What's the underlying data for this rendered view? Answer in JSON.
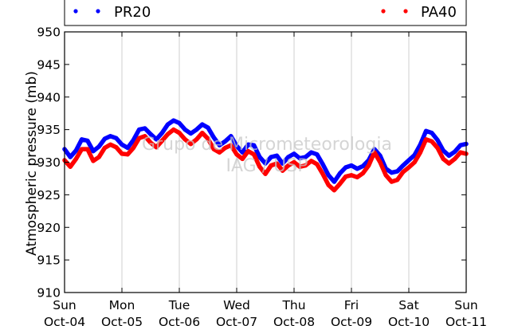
{
  "chart_data": {
    "type": "line",
    "ylabel": "Atmospheric pressure (mb)",
    "ylim": [
      910,
      950
    ],
    "yticks": [
      910,
      915,
      920,
      925,
      930,
      935,
      940,
      945,
      950
    ],
    "x_range_days": [
      0,
      7
    ],
    "xticks": [
      {
        "day": "Sun",
        "date": "Oct-04"
      },
      {
        "day": "Mon",
        "date": "Oct-05"
      },
      {
        "day": "Tue",
        "date": "Oct-06"
      },
      {
        "day": "Wed",
        "date": "Oct-07"
      },
      {
        "day": "Thu",
        "date": "Oct-08"
      },
      {
        "day": "Fri",
        "date": "Oct-09"
      },
      {
        "day": "Sat",
        "date": "Oct-10"
      },
      {
        "day": "Sun",
        "date": "Oct-11"
      }
    ],
    "grid": "vertical",
    "legend_placement": "top, above plot",
    "watermark": [
      "Grupo de Micrometeorologia",
      "IAG / USP"
    ],
    "series": [
      {
        "name": "PR20",
        "color": "#0000ff",
        "points": [
          [
            0.0,
            932.0
          ],
          [
            0.1,
            930.8
          ],
          [
            0.2,
            931.8
          ],
          [
            0.3,
            933.5
          ],
          [
            0.4,
            933.3
          ],
          [
            0.5,
            931.7
          ],
          [
            0.6,
            932.4
          ],
          [
            0.7,
            933.6
          ],
          [
            0.8,
            934.0
          ],
          [
            0.9,
            933.7
          ],
          [
            1.0,
            932.7
          ],
          [
            1.1,
            932.2
          ],
          [
            1.2,
            933.4
          ],
          [
            1.3,
            935.0
          ],
          [
            1.4,
            935.2
          ],
          [
            1.5,
            934.3
          ],
          [
            1.6,
            933.5
          ],
          [
            1.7,
            934.5
          ],
          [
            1.8,
            935.8
          ],
          [
            1.9,
            936.4
          ],
          [
            2.0,
            936.0
          ],
          [
            2.1,
            935.0
          ],
          [
            2.2,
            934.4
          ],
          [
            2.3,
            935.0
          ],
          [
            2.4,
            935.8
          ],
          [
            2.5,
            935.3
          ],
          [
            2.6,
            933.8
          ],
          [
            2.7,
            932.6
          ],
          [
            2.8,
            933.2
          ],
          [
            2.9,
            934.0
          ],
          [
            3.0,
            932.5
          ],
          [
            3.1,
            931.5
          ],
          [
            3.2,
            932.7
          ],
          [
            3.3,
            932.6
          ],
          [
            3.4,
            930.8
          ],
          [
            3.5,
            929.8
          ],
          [
            3.6,
            930.8
          ],
          [
            3.7,
            931.0
          ],
          [
            3.8,
            929.8
          ],
          [
            3.9,
            930.8
          ],
          [
            4.0,
            931.3
          ],
          [
            4.1,
            930.6
          ],
          [
            4.2,
            930.8
          ],
          [
            4.3,
            931.5
          ],
          [
            4.4,
            931.2
          ],
          [
            4.5,
            929.7
          ],
          [
            4.6,
            928.0
          ],
          [
            4.7,
            927.0
          ],
          [
            4.8,
            928.3
          ],
          [
            4.9,
            929.2
          ],
          [
            5.0,
            929.5
          ],
          [
            5.1,
            929.0
          ],
          [
            5.2,
            929.4
          ],
          [
            5.3,
            930.3
          ],
          [
            5.4,
            932.0
          ],
          [
            5.5,
            931.0
          ],
          [
            5.6,
            929.0
          ],
          [
            5.7,
            928.4
          ],
          [
            5.8,
            928.6
          ],
          [
            5.9,
            929.5
          ],
          [
            6.0,
            930.3
          ],
          [
            6.1,
            931.1
          ],
          [
            6.2,
            932.7
          ],
          [
            6.3,
            934.8
          ],
          [
            6.4,
            934.5
          ],
          [
            6.5,
            933.4
          ],
          [
            6.6,
            931.8
          ],
          [
            6.7,
            931.0
          ],
          [
            6.8,
            931.6
          ],
          [
            6.9,
            932.6
          ],
          [
            7.0,
            932.8
          ]
        ]
      },
      {
        "name": "PA40",
        "color": "#ff0000",
        "points": [
          [
            0.0,
            930.3
          ],
          [
            0.1,
            929.3
          ],
          [
            0.2,
            930.5
          ],
          [
            0.3,
            932.0
          ],
          [
            0.4,
            932.0
          ],
          [
            0.5,
            930.2
          ],
          [
            0.6,
            930.8
          ],
          [
            0.7,
            932.2
          ],
          [
            0.8,
            932.7
          ],
          [
            0.9,
            932.3
          ],
          [
            1.0,
            931.3
          ],
          [
            1.1,
            931.2
          ],
          [
            1.2,
            932.2
          ],
          [
            1.3,
            933.7
          ],
          [
            1.4,
            934.0
          ],
          [
            1.5,
            933.0
          ],
          [
            1.6,
            932.3
          ],
          [
            1.7,
            933.3
          ],
          [
            1.8,
            934.3
          ],
          [
            1.9,
            935.0
          ],
          [
            2.0,
            934.5
          ],
          [
            2.1,
            933.5
          ],
          [
            2.2,
            932.8
          ],
          [
            2.3,
            933.5
          ],
          [
            2.4,
            934.5
          ],
          [
            2.5,
            933.6
          ],
          [
            2.6,
            932.0
          ],
          [
            2.7,
            931.5
          ],
          [
            2.8,
            932.2
          ],
          [
            2.9,
            932.6
          ],
          [
            3.0,
            931.2
          ],
          [
            3.1,
            930.5
          ],
          [
            3.2,
            931.7
          ],
          [
            3.3,
            931.2
          ],
          [
            3.4,
            929.3
          ],
          [
            3.5,
            928.2
          ],
          [
            3.6,
            929.5
          ],
          [
            3.7,
            929.8
          ],
          [
            3.8,
            928.7
          ],
          [
            3.9,
            929.5
          ],
          [
            4.0,
            930.0
          ],
          [
            4.1,
            929.3
          ],
          [
            4.2,
            929.5
          ],
          [
            4.3,
            930.2
          ],
          [
            4.4,
            929.7
          ],
          [
            4.5,
            928.2
          ],
          [
            4.6,
            926.5
          ],
          [
            4.7,
            925.7
          ],
          [
            4.8,
            926.7
          ],
          [
            4.9,
            927.8
          ],
          [
            5.0,
            928.0
          ],
          [
            5.1,
            927.7
          ],
          [
            5.2,
            928.3
          ],
          [
            5.3,
            929.5
          ],
          [
            5.4,
            931.5
          ],
          [
            5.5,
            930.0
          ],
          [
            5.6,
            928.0
          ],
          [
            5.7,
            927.0
          ],
          [
            5.8,
            927.3
          ],
          [
            5.9,
            928.5
          ],
          [
            6.0,
            929.2
          ],
          [
            6.1,
            930.0
          ],
          [
            6.2,
            931.5
          ],
          [
            6.3,
            933.5
          ],
          [
            6.4,
            933.2
          ],
          [
            6.5,
            932.2
          ],
          [
            6.6,
            930.5
          ],
          [
            6.7,
            929.8
          ],
          [
            6.8,
            930.5
          ],
          [
            6.9,
            931.5
          ],
          [
            7.0,
            931.3
          ]
        ]
      }
    ]
  }
}
